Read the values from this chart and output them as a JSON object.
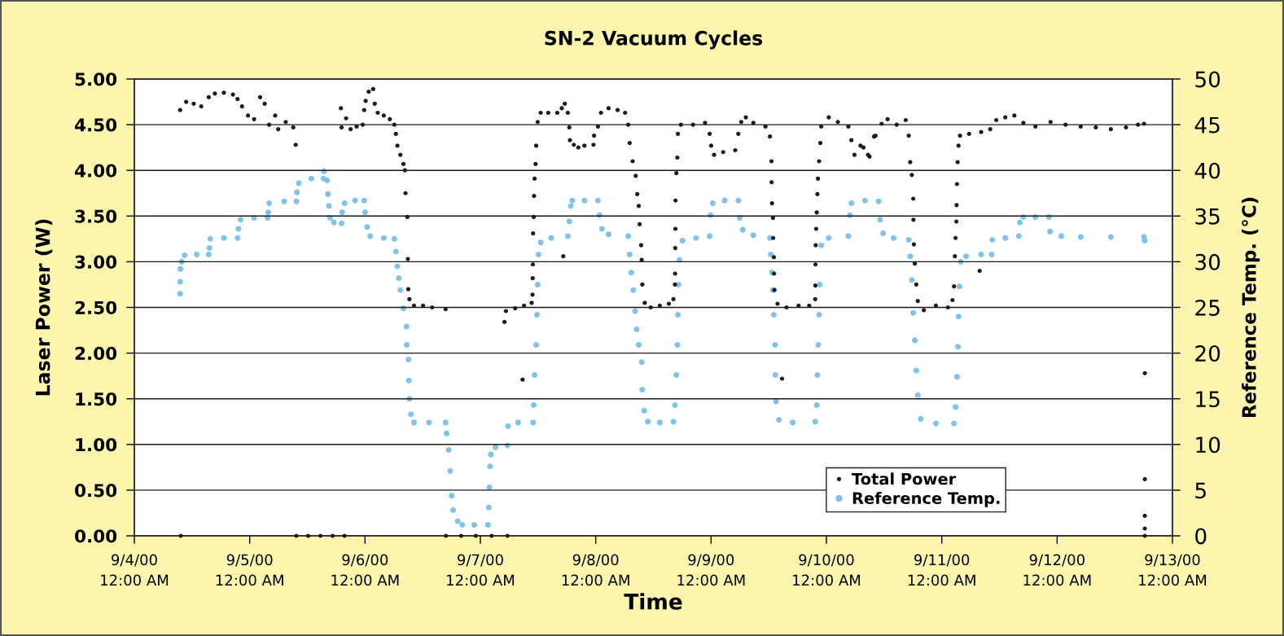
{
  "chart_data": {
    "type": "scatter",
    "title": "SN-2 Vacuum Cycles",
    "xlabel": "Time",
    "ylabel": "Laser Power (W)",
    "y2label": "Reference Temp. (°C)",
    "xlim": [
      "2000-09-04T00:00",
      "2000-09-13T00:00"
    ],
    "xticks": [
      {
        "value": "2000-09-04T00:00",
        "label": "9/4/00\n12:00 AM"
      },
      {
        "value": "2000-09-05T00:00",
        "label": "9/5/00\n12:00 AM"
      },
      {
        "value": "2000-09-06T00:00",
        "label": "9/6/00\n12:00 AM"
      },
      {
        "value": "2000-09-07T00:00",
        "label": "9/7/00\n12:00 AM"
      },
      {
        "value": "2000-09-08T00:00",
        "label": "9/8/00\n12:00 AM"
      },
      {
        "value": "2000-09-09T00:00",
        "label": "9/9/00\n12:00 AM"
      },
      {
        "value": "2000-09-10T00:00",
        "label": "9/10/00\n12:00 AM"
      },
      {
        "value": "2000-09-11T00:00",
        "label": "9/11/00\n12:00 AM"
      },
      {
        "value": "2000-09-12T00:00",
        "label": "9/12/00\n12:00 AM"
      },
      {
        "value": "2000-09-13T00:00",
        "label": "9/13/00\n12:00 AM"
      }
    ],
    "ylim": [
      0,
      5
    ],
    "yticks": [
      {
        "value": 0,
        "label": "0.00"
      },
      {
        "value": 0.5,
        "label": "0.50"
      },
      {
        "value": 1,
        "label": "1.00"
      },
      {
        "value": 1.5,
        "label": "1.50"
      },
      {
        "value": 2,
        "label": "2.00"
      },
      {
        "value": 2.5,
        "label": "2.50"
      },
      {
        "value": 3,
        "label": "3.00"
      },
      {
        "value": 3.5,
        "label": "3.50"
      },
      {
        "value": 4,
        "label": "4.00"
      },
      {
        "value": 4.5,
        "label": "4.50"
      },
      {
        "value": 5,
        "label": "5.00"
      }
    ],
    "y2lim": [
      0,
      50
    ],
    "y2ticks": [
      0,
      5,
      10,
      15,
      20,
      25,
      30,
      35,
      40,
      45,
      50
    ],
    "grid": "y",
    "legend": "bottom right",
    "marker": "circle",
    "series": [
      {
        "name": "Total Power",
        "color": "#1c1c1c",
        "x": [
          "2000-09-04T09:32",
          "2000-09-04T09:40",
          "2000-09-04T10:47",
          "2000-09-04T12:21",
          "2000-09-04T13:55",
          "2000-09-04T15:29",
          "2000-09-04T16:45",
          "2000-09-04T18:38",
          "2000-09-04T20:31",
          "2000-09-04T21:28",
          "2000-09-04T22:24",
          "2000-09-04T23:39",
          "2000-09-05T00:55",
          "2000-09-05T02:10",
          "2000-09-05T03:07",
          "2000-09-05T04:03",
          "2000-09-05T05:18",
          "2000-09-05T05:56",
          "2000-09-05T07:30",
          "2000-09-05T09:04",
          "2000-09-05T09:34",
          "2000-09-05T09:42",
          "2000-09-05T12:10",
          "2000-09-05T14:43",
          "2000-09-05T17:15",
          "2000-09-05T19:44",
          "2000-09-05T18:59",
          "2000-09-05T19:07",
          "2000-09-05T20:04",
          "2000-09-05T21:00",
          "2000-09-05T22:15",
          "2000-09-05T23:31",
          "2000-09-05T23:49",
          "2000-09-06T00:08",
          "2000-09-06T00:46",
          "2000-09-06T01:42",
          "2000-09-06T02:01",
          "2000-09-06T02:39",
          "2000-09-06T03:54",
          "2000-09-06T05:10",
          "2000-09-06T06:06",
          "2000-09-06T06:25",
          "2000-09-06T06:44",
          "2000-09-06T07:21",
          "2000-09-06T07:59",
          "2000-09-06T08:18",
          "2000-09-06T08:25",
          "2000-09-06T08:48",
          "2000-09-06T08:55",
          "2000-09-06T09:00",
          "2000-09-06T09:14",
          "2000-09-06T10:11",
          "2000-09-06T12:04",
          "2000-09-06T13:57",
          "2000-09-06T16:46",
          "2000-09-06T16:50",
          "2000-09-06T20:00",
          "2000-09-06T23:03",
          "2000-09-07T02:20",
          "2000-09-07T05:38",
          "2000-09-07T05:01",
          "2000-09-07T05:19",
          "2000-09-07T07:13",
          "2000-09-07T08:47",
          "2000-09-07T09:05",
          "2000-09-07T10:40",
          "2000-09-07T10:51",
          "2000-09-07T10:53",
          "2000-09-07T10:55",
          "2000-09-07T10:58",
          "2000-09-07T11:06",
          "2000-09-07T11:10",
          "2000-09-07T11:17",
          "2000-09-07T11:29",
          "2000-09-07T11:36",
          "2000-09-07T11:55",
          "2000-09-07T12:33",
          "2000-09-07T14:07",
          "2000-09-07T16:00",
          "2000-09-07T16:56",
          "2000-09-07T17:15",
          "2000-09-07T17:34",
          "2000-09-07T18:11",
          "2000-09-07T18:30",
          "2000-09-07T18:38",
          "2000-09-07T19:27",
          "2000-09-07T20:23",
          "2000-09-07T21:39",
          "2000-09-07T23:32",
          "2000-09-07T23:39",
          "2000-09-08T00:28",
          "2000-09-08T01:06",
          "2000-09-08T02:40",
          "2000-09-08T04:33",
          "2000-09-08T06:07",
          "2000-09-08T06:45",
          "2000-09-08T07:04",
          "2000-09-08T07:41",
          "2000-09-08T08:19",
          "2000-09-08T08:38",
          "2000-09-08T08:57",
          "2000-09-08T09:08",
          "2000-09-08T09:27",
          "2000-09-08T09:34",
          "2000-09-08T09:42",
          "2000-09-08T10:12",
          "2000-09-08T11:27",
          "2000-09-08T13:20",
          "2000-09-08T15:13",
          "2000-09-08T16:10",
          "2000-09-08T16:29",
          "2000-09-08T16:31",
          "2000-09-08T16:33",
          "2000-09-08T16:35",
          "2000-09-08T16:36",
          "2000-09-08T16:47",
          "2000-09-08T16:59",
          "2000-09-08T17:06",
          "2000-09-08T17:44",
          "2000-09-08T20:15",
          "2000-09-08T22:45",
          "2000-09-08T23:42",
          "2000-09-09T00:01",
          "2000-09-09T00:38",
          "2000-09-09T02:31",
          "2000-09-09T05:02",
          "2000-09-09T05:40",
          "2000-09-09T06:17",
          "2000-09-09T07:14",
          "2000-09-09T08:48",
          "2000-09-09T11:19",
          "2000-09-09T12:15",
          "2000-09-09T12:34",
          "2000-09-09T12:36",
          "2000-09-09T12:41",
          "2000-09-09T12:53",
          "2000-09-09T12:55",
          "2000-09-09T13:04",
          "2000-09-09T13:06",
          "2000-09-09T13:11",
          "2000-09-09T13:49",
          "2000-09-09T14:46",
          "2000-09-09T15:42",
          "2000-09-09T18:13",
          "2000-09-09T20:25",
          "2000-09-09T21:40",
          "2000-09-09T21:42",
          "2000-09-09T21:44",
          "2000-09-09T21:46",
          "2000-09-09T21:52",
          "2000-09-09T21:59",
          "2000-09-09T22:07",
          "2000-09-09T22:14",
          "2000-09-09T22:29",
          "2000-09-09T22:44",
          "2000-09-09T22:55",
          "2000-09-10T00:29",
          "2000-09-10T02:23",
          "2000-09-10T04:34",
          "2000-09-10T05:12",
          "2000-09-10T05:50",
          "2000-09-10T07:05",
          "2000-09-10T07:43",
          "2000-09-10T08:39",
          "2000-09-10T08:58",
          "2000-09-10T09:55",
          "2000-09-10T10:13",
          "2000-09-10T11:29",
          "2000-09-10T12:44",
          "2000-09-10T14:37",
          "2000-09-10T16:30",
          "2000-09-10T17:08",
          "2000-09-10T17:26",
          "2000-09-10T17:46",
          "2000-09-10T18:04",
          "2000-09-10T18:06",
          "2000-09-10T18:12",
          "2000-09-10T18:23",
          "2000-09-10T18:42",
          "2000-09-10T19:01",
          "2000-09-10T20:16",
          "2000-09-10T22:47",
          "2000-09-11T01:17",
          "2000-09-11T02:14",
          "2000-09-11T02:33",
          "2000-09-11T02:44",
          "2000-09-11T02:52",
          "2000-09-11T03:03",
          "2000-09-11T03:05",
          "2000-09-11T03:10",
          "2000-09-11T03:18",
          "2000-09-11T03:29",
          "2000-09-11T03:48",
          "2000-09-11T05:41",
          "2000-09-11T07:53",
          "2000-09-11T08:12",
          "2000-09-11T10:05",
          "2000-09-11T11:20",
          "2000-09-11T13:13",
          "2000-09-11T15:06",
          "2000-09-11T16:59",
          "2000-09-11T19:29",
          "2000-09-11T22:38",
          "2000-09-12T01:46",
          "2000-09-12T04:55",
          "2000-09-12T08:03",
          "2000-09-12T11:11",
          "2000-09-12T14:20",
          "2000-09-12T16:50",
          "2000-09-12T18:05",
          "2000-09-12T18:15",
          "2000-09-12T18:15",
          "2000-09-12T18:15",
          "2000-09-12T18:15",
          "2000-09-12T18:15"
        ],
        "values": [
          4.66,
          0,
          4.75,
          4.73,
          4.7,
          4.8,
          4.84,
          4.85,
          4.83,
          4.78,
          4.7,
          4.6,
          4.56,
          4.8,
          4.73,
          4.5,
          4.6,
          4.45,
          4.53,
          4.47,
          4.28,
          0,
          0,
          0,
          0,
          0,
          4.68,
          4.47,
          4.57,
          4.45,
          4.48,
          4.5,
          4.66,
          4.76,
          4.86,
          4.89,
          4.73,
          4.63,
          4.6,
          4.56,
          4.5,
          4.4,
          4.27,
          4.17,
          4.07,
          4.0,
          3.75,
          3.49,
          3.03,
          2.7,
          2.59,
          2.52,
          2.52,
          2.5,
          2.48,
          0,
          0,
          0,
          0,
          0,
          2.34,
          2.46,
          2.49,
          1.71,
          2.52,
          2.55,
          2.64,
          2.82,
          2.97,
          3.31,
          3.49,
          3.72,
          3.91,
          4.07,
          4.27,
          4.53,
          4.63,
          4.63,
          4.63,
          4.68,
          3.06,
          4.73,
          4.63,
          4.47,
          4.33,
          4.28,
          4.25,
          4.27,
          4.28,
          4.38,
          4.48,
          4.63,
          4.68,
          4.66,
          4.63,
          4.5,
          4.3,
          4.1,
          3.94,
          3.74,
          3.61,
          3.41,
          3.18,
          3.02,
          2.75,
          2.55,
          2.5,
          2.52,
          2.54,
          2.59,
          2.75,
          2.87,
          3.15,
          3.36,
          3.67,
          3.97,
          4.14,
          4.4,
          4.5,
          4.5,
          4.52,
          4.4,
          4.27,
          4.17,
          4.2,
          4.22,
          4.4,
          4.53,
          4.58,
          4.52,
          4.48,
          4.37,
          4.1,
          3.87,
          3.64,
          3.48,
          3.26,
          3.05,
          2.87,
          2.69,
          2.54,
          1.72,
          2.5,
          2.52,
          2.52,
          2.59,
          2.74,
          2.97,
          3.18,
          3.36,
          3.54,
          3.74,
          3.91,
          4.1,
          4.3,
          4.48,
          4.58,
          4.53,
          4.48,
          4.33,
          4.17,
          4.27,
          4.25,
          4.17,
          4.15,
          4.37,
          4.38,
          4.51,
          4.56,
          4.5,
          4.55,
          4.38,
          4.09,
          3.95,
          3.69,
          3.46,
          3.19,
          2.98,
          2.75,
          2.57,
          2.47,
          2.52,
          2.5,
          2.58,
          2.73,
          3.06,
          3.26,
          3.44,
          3.62,
          3.85,
          4.09,
          4.27,
          4.38,
          4.4,
          2.9,
          4.42,
          4.45,
          4.55,
          4.58,
          4.6,
          4.52,
          4.48,
          4.53,
          4.5,
          4.48,
          4.47,
          4.45,
          4.47,
          4.5,
          4.51,
          1.78,
          0.62,
          0.22,
          0.08,
          0
        ]
      },
      {
        "name": "Reference Temp.",
        "color": "#7fc3ea",
        "axis": "y2",
        "x": [
          "2000-09-04T09:32",
          "2000-09-04T09:33",
          "2000-09-04T09:35",
          "2000-09-04T09:51",
          "2000-09-04T10:28",
          "2000-09-04T12:59",
          "2000-09-04T15:29",
          "2000-09-04T15:37",
          "2000-09-04T15:48",
          "2000-09-04T18:38",
          "2000-09-04T21:28",
          "2000-09-04T21:39",
          "2000-09-04T22:05",
          "2000-09-05T00:55",
          "2000-09-05T03:44",
          "2000-09-05T03:51",
          "2000-09-05T04:03",
          "2000-09-05T07:11",
          "2000-09-05T09:42",
          "2000-09-05T09:49",
          "2000-09-05T10:12",
          "2000-09-05T12:50",
          "2000-09-05T15:21",
          "2000-09-05T15:28",
          "2000-09-05T16:06",
          "2000-09-05T16:17",
          "2000-09-05T16:29",
          "2000-09-05T16:44",
          "2000-09-05T17:32",
          "2000-09-05T19:07",
          "2000-09-05T19:14",
          "2000-09-05T19:44",
          "2000-09-05T21:56",
          "2000-09-05T23:49",
          "2000-09-06T00:01",
          "2000-09-06T00:27",
          "2000-09-06T01:05",
          "2000-09-06T03:54",
          "2000-09-06T06:06",
          "2000-09-06T06:25",
          "2000-09-06T06:44",
          "2000-09-06T07:02",
          "2000-09-06T07:21",
          "2000-09-06T07:59",
          "2000-09-06T08:37",
          "2000-09-06T08:41",
          "2000-09-06T09:03",
          "2000-09-06T09:07",
          "2000-09-06T09:14",
          "2000-09-06T09:33",
          "2000-09-06T10:11",
          "2000-09-06T13:19",
          "2000-09-06T16:46",
          "2000-09-06T16:58",
          "2000-09-06T17:24",
          "2000-09-06T17:43",
          "2000-09-06T18:02",
          "2000-09-06T18:20",
          "2000-09-06T19:17",
          "2000-09-06T20:13",
          "2000-09-06T22:44",
          "2000-09-07T01:34",
          "2000-09-07T01:45",
          "2000-09-07T01:52",
          "2000-09-07T02:00",
          "2000-09-07T02:11",
          "2000-09-07T03:08",
          "2000-09-07T05:38",
          "2000-09-07T05:46",
          "2000-09-07T07:50",
          "2000-09-07T10:58",
          "2000-09-07T11:06",
          "2000-09-07T11:17",
          "2000-09-07T11:36",
          "2000-09-07T11:47",
          "2000-09-07T11:55",
          "2000-09-07T12:06",
          "2000-09-07T12:33",
          "2000-09-07T14:44",
          "2000-09-07T18:11",
          "2000-09-07T18:30",
          "2000-09-07T18:49",
          "2000-09-07T19:08",
          "2000-09-07T21:39",
          "2000-09-08T00:28",
          "2000-09-08T00:47",
          "2000-09-08T01:17",
          "2000-09-08T02:40",
          "2000-09-08T06:45",
          "2000-09-08T07:04",
          "2000-09-08T07:23",
          "2000-09-08T07:49",
          "2000-09-08T08:11",
          "2000-09-08T08:31",
          "2000-09-08T08:57",
          "2000-09-08T09:34",
          "2000-09-08T09:42",
          "2000-09-08T10:05",
          "2000-09-08T10:50",
          "2000-09-08T13:20",
          "2000-09-08T16:10",
          "2000-09-08T16:29",
          "2000-09-08T16:47",
          "2000-09-08T16:59",
          "2000-09-08T17:06",
          "2000-09-08T17:14",
          "2000-09-08T17:25",
          "2000-09-08T18:03",
          "2000-09-08T20:52",
          "2000-09-08T23:42",
          "2000-09-08T23:53",
          "2000-09-09T00:20",
          "2000-09-09T02:50",
          "2000-09-09T05:40",
          "2000-09-09T05:58",
          "2000-09-09T06:36",
          "2000-09-09T08:48",
          "2000-09-09T12:15",
          "2000-09-09T12:26",
          "2000-09-09T12:41",
          "2000-09-09T12:53",
          "2000-09-09T13:04",
          "2000-09-09T13:19",
          "2000-09-09T13:23",
          "2000-09-09T13:31",
          "2000-09-09T14:08",
          "2000-09-09T16:58",
          "2000-09-09T21:40",
          "2000-09-09T21:59",
          "2000-09-09T22:07",
          "2000-09-09T22:18",
          "2000-09-09T22:29",
          "2000-09-09T22:37",
          "2000-09-09T22:55",
          "2000-09-10T00:29",
          "2000-09-10T04:34",
          "2000-09-10T04:53",
          "2000-09-10T05:12",
          "2000-09-10T08:02",
          "2000-09-10T10:51",
          "2000-09-10T11:10",
          "2000-09-10T11:47",
          "2000-09-10T13:59",
          "2000-09-10T17:08",
          "2000-09-10T17:26",
          "2000-09-10T17:46",
          "2000-09-10T18:04",
          "2000-09-10T18:23",
          "2000-09-10T18:42",
          "2000-09-10T19:01",
          "2000-09-10T19:38",
          "2000-09-10T22:47",
          "2000-09-11T02:33",
          "2000-09-11T02:52",
          "2000-09-11T03:10",
          "2000-09-11T03:22",
          "2000-09-11T03:29",
          "2000-09-11T03:41",
          "2000-09-11T03:56",
          "2000-09-11T05:04",
          "2000-09-11T08:12",
          "2000-09-11T10:23",
          "2000-09-11T10:31",
          "2000-09-11T13:13",
          "2000-09-11T16:02",
          "2000-09-11T16:14",
          "2000-09-11T16:59",
          "2000-09-11T19:29",
          "2000-09-11T22:19",
          "2000-09-11T22:31",
          "2000-09-12T00:53",
          "2000-09-12T04:55",
          "2000-09-12T11:11",
          "2000-09-12T18:05",
          "2000-09-12T18:13"
        ],
        "values": [
          26.5,
          27.8,
          29.2,
          30.0,
          30.7,
          30.8,
          30.8,
          31.5,
          32.5,
          32.6,
          32.6,
          33.6,
          34.6,
          34.8,
          34.8,
          35.4,
          36.4,
          36.6,
          36.6,
          37.6,
          38.6,
          39.1,
          39.1,
          39.9,
          38.9,
          37.4,
          36.1,
          34.8,
          34.3,
          34.2,
          35.4,
          36.4,
          36.7,
          36.7,
          35.4,
          33.8,
          32.8,
          32.6,
          32.5,
          31.1,
          29.5,
          28.2,
          26.9,
          24.9,
          22.9,
          20.9,
          19.3,
          17.0,
          15.0,
          13.3,
          12.4,
          12.4,
          12.4,
          11.2,
          9.4,
          7.1,
          4.4,
          2.8,
          1.6,
          1.2,
          1.2,
          1.2,
          3.1,
          5.3,
          7.6,
          8.9,
          9.7,
          9.9,
          12.0,
          12.4,
          12.4,
          14.3,
          17.6,
          20.9,
          24.2,
          27.5,
          30.8,
          32.1,
          32.6,
          32.8,
          34.4,
          36.1,
          36.7,
          36.7,
          36.7,
          35.1,
          33.6,
          33.0,
          32.8,
          30.8,
          28.8,
          26.9,
          24.6,
          22.6,
          20.9,
          19.0,
          16.0,
          13.7,
          12.5,
          12.4,
          12.5,
          14.3,
          17.6,
          20.9,
          24.2,
          27.5,
          30.2,
          32.3,
          32.6,
          32.8,
          35.1,
          36.4,
          36.7,
          36.7,
          34.8,
          33.5,
          32.9,
          32.6,
          30.8,
          28.8,
          26.9,
          24.2,
          20.9,
          17.6,
          14.7,
          12.7,
          12.4,
          12.5,
          14.3,
          17.6,
          20.9,
          24.2,
          27.5,
          31.8,
          32.6,
          32.8,
          35.1,
          36.4,
          36.7,
          36.6,
          34.6,
          33.1,
          32.6,
          32.4,
          30.6,
          28.0,
          24.4,
          21.4,
          18.1,
          15.4,
          12.8,
          12.3,
          12.3,
          14.1,
          17.4,
          20.7,
          24.0,
          27.3,
          30.0,
          30.6,
          30.8,
          30.8,
          32.4,
          32.6,
          32.8,
          34.3,
          34.9,
          34.9,
          34.9,
          33.3,
          32.8,
          32.7,
          32.7,
          32.7,
          32.3
        ]
      }
    ]
  }
}
